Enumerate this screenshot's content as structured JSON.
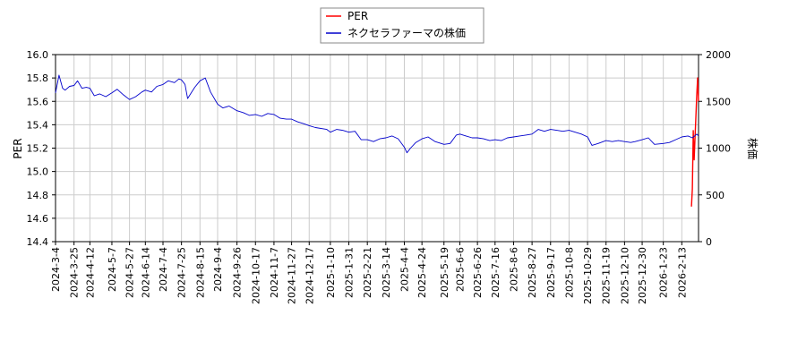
{
  "chart_data": {
    "type": "line",
    "legend": {
      "placement": "top-center",
      "entries": [
        "PER",
        "ネクセラファーマの株価"
      ]
    },
    "x_ticks": [
      "2024-3-4",
      "2024-3-25",
      "2024-4-12",
      "2024-5-7",
      "2024-5-27",
      "2024-6-14",
      "2024-7-4",
      "2024-7-25",
      "2024-8-15",
      "2024-9-4",
      "2024-9-26",
      "2024-10-17",
      "2024-11-7",
      "2024-11-27",
      "2024-12-17",
      "2025-1-10",
      "2025-1-31",
      "2025-2-21",
      "2025-3-14",
      "2025-4-4",
      "2025-4-24",
      "2025-5-19",
      "2025-6-6",
      "2025-6-26",
      "2025-7-16",
      "2025-8-6",
      "2025-8-27",
      "2025-9-17",
      "2025-10-8",
      "2025-10-29",
      "2025-11-19",
      "2025-12-10",
      "2025-12-30",
      "2026-1-23",
      "2026-2-13"
    ],
    "x_range": [
      "2024-3-4",
      "2026-3-4"
    ],
    "left_axis": {
      "label": "PER",
      "range": [
        14.4,
        16.0
      ],
      "ticks": [
        "14.4",
        "14.6",
        "14.8",
        "15.0",
        "15.2",
        "15.4",
        "15.6",
        "15.8",
        "16.0"
      ]
    },
    "right_axis": {
      "label": "株価",
      "range": [
        0,
        2000
      ],
      "ticks": [
        "0",
        "500",
        "1000",
        "1500",
        "2000"
      ]
    },
    "grid": true,
    "series": [
      {
        "name": "PER",
        "axis": "left",
        "color": "#ff0000",
        "points": [
          [
            "2026-2-24",
            14.7
          ],
          [
            "2026-2-25",
            14.85
          ],
          [
            "2026-2-26",
            15.35
          ],
          [
            "2026-2-27",
            15.1
          ],
          [
            "2026-3-2",
            15.65
          ],
          [
            "2026-3-3",
            15.8
          ],
          [
            "2026-3-4",
            15.6
          ]
        ]
      },
      {
        "name": "ネクセラファーマの株価",
        "axis": "right",
        "color": "#0000cc",
        "points": [
          [
            "2024-3-4",
            1590
          ],
          [
            "2024-3-8",
            1780
          ],
          [
            "2024-3-12",
            1640
          ],
          [
            "2024-3-15",
            1620
          ],
          [
            "2024-3-20",
            1660
          ],
          [
            "2024-3-25",
            1670
          ],
          [
            "2024-3-29",
            1720
          ],
          [
            "2024-4-3",
            1640
          ],
          [
            "2024-4-8",
            1650
          ],
          [
            "2024-4-12",
            1640
          ],
          [
            "2024-4-17",
            1560
          ],
          [
            "2024-4-23",
            1580
          ],
          [
            "2024-4-30",
            1550
          ],
          [
            "2024-5-7",
            1590
          ],
          [
            "2024-5-13",
            1630
          ],
          [
            "2024-5-20",
            1570
          ],
          [
            "2024-5-27",
            1520
          ],
          [
            "2024-6-3",
            1550
          ],
          [
            "2024-6-10",
            1600
          ],
          [
            "2024-6-14",
            1620
          ],
          [
            "2024-6-21",
            1600
          ],
          [
            "2024-6-27",
            1660
          ],
          [
            "2024-7-4",
            1680
          ],
          [
            "2024-7-10",
            1720
          ],
          [
            "2024-7-17",
            1700
          ],
          [
            "2024-7-22",
            1740
          ],
          [
            "2024-7-25",
            1730
          ],
          [
            "2024-7-29",
            1680
          ],
          [
            "2024-8-1",
            1530
          ],
          [
            "2024-8-5",
            1590
          ],
          [
            "2024-8-9",
            1650
          ],
          [
            "2024-8-15",
            1720
          ],
          [
            "2024-8-21",
            1750
          ],
          [
            "2024-8-27",
            1600
          ],
          [
            "2024-9-4",
            1470
          ],
          [
            "2024-9-10",
            1430
          ],
          [
            "2024-9-17",
            1450
          ],
          [
            "2024-9-26",
            1400
          ],
          [
            "2024-10-3",
            1380
          ],
          [
            "2024-10-10",
            1350
          ],
          [
            "2024-10-17",
            1360
          ],
          [
            "2024-10-24",
            1340
          ],
          [
            "2024-10-31",
            1370
          ],
          [
            "2024-11-7",
            1360
          ],
          [
            "2024-11-14",
            1320
          ],
          [
            "2024-11-21",
            1310
          ],
          [
            "2024-11-27",
            1310
          ],
          [
            "2024-12-4",
            1280
          ],
          [
            "2024-12-11",
            1260
          ],
          [
            "2024-12-17",
            1240
          ],
          [
            "2024-12-24",
            1220
          ],
          [
            "2025-1-6",
            1200
          ],
          [
            "2025-1-10",
            1170
          ],
          [
            "2025-1-17",
            1200
          ],
          [
            "2025-1-24",
            1190
          ],
          [
            "2025-1-31",
            1170
          ],
          [
            "2025-2-7",
            1180
          ],
          [
            "2025-2-14",
            1090
          ],
          [
            "2025-2-21",
            1090
          ],
          [
            "2025-2-28",
            1070
          ],
          [
            "2025-3-7",
            1100
          ],
          [
            "2025-3-14",
            1110
          ],
          [
            "2025-3-21",
            1130
          ],
          [
            "2025-3-28",
            1100
          ],
          [
            "2025-4-4",
            1010
          ],
          [
            "2025-4-7",
            950
          ],
          [
            "2025-4-11",
            1000
          ],
          [
            "2025-4-17",
            1060
          ],
          [
            "2025-4-24",
            1100
          ],
          [
            "2025-5-1",
            1120
          ],
          [
            "2025-5-9",
            1070
          ],
          [
            "2025-5-19",
            1040
          ],
          [
            "2025-5-26",
            1050
          ],
          [
            "2025-6-2",
            1140
          ],
          [
            "2025-6-6",
            1150
          ],
          [
            "2025-6-13",
            1130
          ],
          [
            "2025-6-20",
            1110
          ],
          [
            "2025-6-26",
            1110
          ],
          [
            "2025-7-3",
            1100
          ],
          [
            "2025-7-10",
            1080
          ],
          [
            "2025-7-16",
            1090
          ],
          [
            "2025-7-23",
            1080
          ],
          [
            "2025-7-30",
            1110
          ],
          [
            "2025-8-6",
            1120
          ],
          [
            "2025-8-13",
            1130
          ],
          [
            "2025-8-20",
            1140
          ],
          [
            "2025-8-27",
            1150
          ],
          [
            "2025-9-3",
            1200
          ],
          [
            "2025-9-10",
            1180
          ],
          [
            "2025-9-17",
            1200
          ],
          [
            "2025-9-24",
            1190
          ],
          [
            "2025-10-1",
            1180
          ],
          [
            "2025-10-8",
            1190
          ],
          [
            "2025-10-15",
            1170
          ],
          [
            "2025-10-22",
            1150
          ],
          [
            "2025-10-29",
            1120
          ],
          [
            "2025-11-3",
            1030
          ],
          [
            "2025-11-10",
            1050
          ],
          [
            "2025-11-19",
            1080
          ],
          [
            "2025-11-26",
            1070
          ],
          [
            "2025-12-3",
            1080
          ],
          [
            "2025-12-10",
            1070
          ],
          [
            "2025-12-17",
            1060
          ],
          [
            "2025-12-22",
            1070
          ],
          [
            "2025-12-30",
            1090
          ],
          [
            "2026-1-6",
            1110
          ],
          [
            "2026-1-13",
            1040
          ],
          [
            "2026-1-23",
            1050
          ],
          [
            "2026-1-30",
            1060
          ],
          [
            "2026-2-6",
            1090
          ],
          [
            "2026-2-13",
            1120
          ],
          [
            "2026-2-20",
            1130
          ],
          [
            "2026-2-25",
            1110
          ],
          [
            "2026-3-2",
            1150
          ],
          [
            "2026-3-4",
            1130
          ]
        ]
      }
    ]
  }
}
